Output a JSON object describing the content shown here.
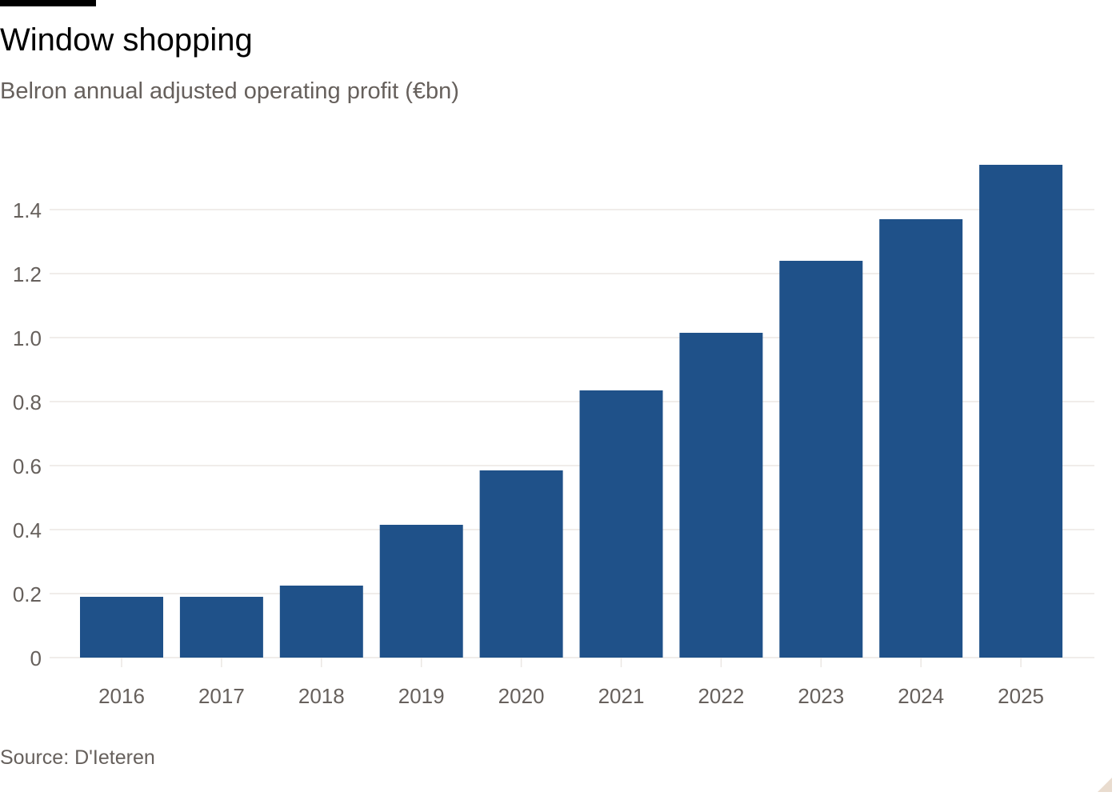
{
  "header": {
    "title": "Window shopping",
    "subtitle": "Belron annual adjusted operating profit (€bn)"
  },
  "footer": {
    "source": "Source: D'Ieteren"
  },
  "colors": {
    "bar": "#1f5189",
    "grid": "#ebe7e3",
    "axis_text": "#66605c",
    "title": "#000000"
  },
  "chart_data": {
    "type": "bar",
    "title": "Window shopping",
    "subtitle": "Belron annual adjusted operating profit (€bn)",
    "categories": [
      "2016",
      "2017",
      "2018",
      "2019",
      "2020",
      "2021",
      "2022",
      "2023",
      "2024",
      "2025"
    ],
    "values": [
      0.19,
      0.19,
      0.225,
      0.415,
      0.585,
      0.835,
      1.015,
      1.24,
      1.37,
      1.54
    ],
    "ylim": [
      0,
      1.55
    ],
    "yticks": [
      0,
      0.2,
      0.4,
      0.6,
      0.8,
      1.0,
      1.2,
      1.4
    ],
    "ytick_labels": [
      "0",
      "0.2",
      "0.4",
      "0.6",
      "0.8",
      "1.0",
      "1.2",
      "1.4"
    ],
    "grid": true,
    "source": "Source: D'Ieteren"
  }
}
